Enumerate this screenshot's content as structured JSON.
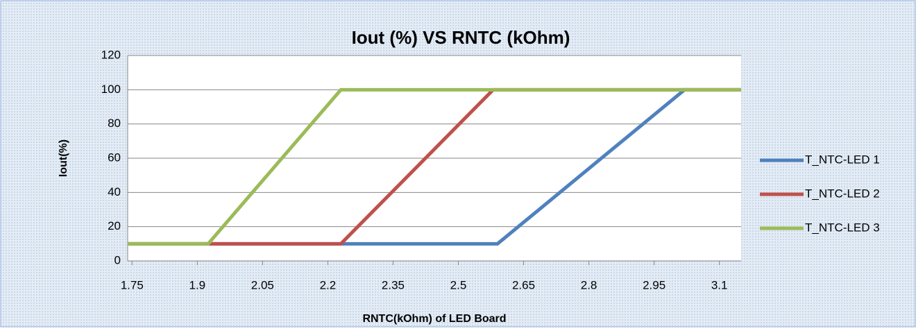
{
  "chart_data": {
    "type": "line",
    "title": "Iout (%) VS RNTC (kOhm)",
    "xlabel": "RNTC(kOhm) of LED Board",
    "ylabel": "Iout(%)",
    "xlim": [
      1.74,
      3.15
    ],
    "xticks": [
      1.75,
      1.9,
      2.05,
      2.2,
      2.35,
      2.5,
      2.65,
      2.8,
      2.95,
      3.1
    ],
    "ylim": [
      0,
      120
    ],
    "yticks": [
      0,
      20,
      40,
      60,
      80,
      100,
      120
    ],
    "grid": true,
    "legend": "right",
    "series": [
      {
        "name": "T_NTC-LED 1",
        "color": "#4f81bd",
        "x": [
          1.74,
          2.59,
          3.02,
          3.15
        ],
        "values": [
          10,
          10,
          100,
          100
        ]
      },
      {
        "name": "T_NTC-LED 2",
        "color": "#c0504d",
        "x": [
          1.74,
          2.23,
          2.58,
          3.15
        ],
        "values": [
          10,
          10,
          100,
          100
        ]
      },
      {
        "name": "T_NTC-LED 3",
        "color": "#9bbb59",
        "x": [
          1.74,
          1.925,
          2.23,
          3.15
        ],
        "values": [
          10,
          10,
          100,
          100
        ]
      }
    ]
  }
}
